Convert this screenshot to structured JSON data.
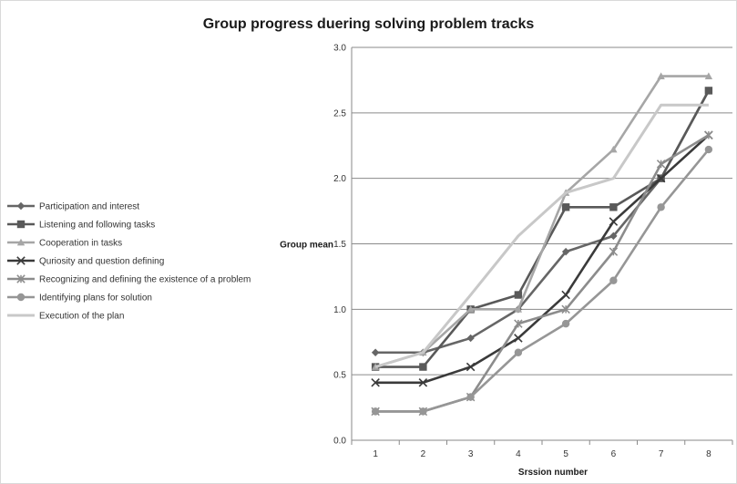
{
  "chart_data": {
    "type": "line",
    "title": "Group progress duering solving problem tracks",
    "xlabel": "Srssion number",
    "ylabel": "Group mean",
    "x": [
      1,
      2,
      3,
      4,
      5,
      6,
      7,
      8
    ],
    "ylim": [
      0,
      3.0
    ],
    "yticks": [
      "0.0",
      "0.5",
      "1.0",
      "1.5",
      "2.0",
      "2.5",
      "3.0"
    ],
    "grid": "horizontal",
    "legend_position": "left",
    "series": [
      {
        "name": "Participation and interest",
        "marker": "diamond",
        "color": "#666666",
        "values": [
          0.67,
          0.67,
          0.78,
          1.0,
          1.44,
          1.56,
          2.0,
          2.67
        ]
      },
      {
        "name": "Listening and following tasks",
        "marker": "square",
        "color": "#595959",
        "values": [
          0.56,
          0.56,
          1.0,
          1.11,
          1.78,
          1.78,
          2.0,
          2.67
        ]
      },
      {
        "name": "Cooperation in tasks",
        "marker": "triangle",
        "color": "#a6a6a6",
        "values": [
          0.56,
          0.67,
          1.0,
          1.0,
          1.89,
          2.22,
          2.78,
          2.78
        ]
      },
      {
        "name": "Quriosity and question defining",
        "marker": "x",
        "color": "#3a3a3a",
        "values": [
          0.44,
          0.44,
          0.56,
          0.78,
          1.11,
          1.67,
          2.0,
          2.33
        ]
      },
      {
        "name": "Recognizing and defining the existence of a problem",
        "marker": "star",
        "color": "#8c8c8c",
        "values": [
          0.22,
          0.22,
          0.33,
          0.89,
          1.0,
          1.44,
          2.11,
          2.33
        ]
      },
      {
        "name": "Identifying plans for solution",
        "marker": "circle",
        "color": "#969696",
        "values": [
          0.22,
          0.22,
          0.33,
          0.67,
          0.89,
          1.22,
          1.78,
          2.22
        ]
      },
      {
        "name": "Execution of the plan",
        "marker": "none",
        "color": "#c8c8c8",
        "values": [
          0.56,
          0.67,
          1.11,
          1.56,
          1.89,
          2.0,
          2.56,
          2.56
        ]
      }
    ]
  }
}
